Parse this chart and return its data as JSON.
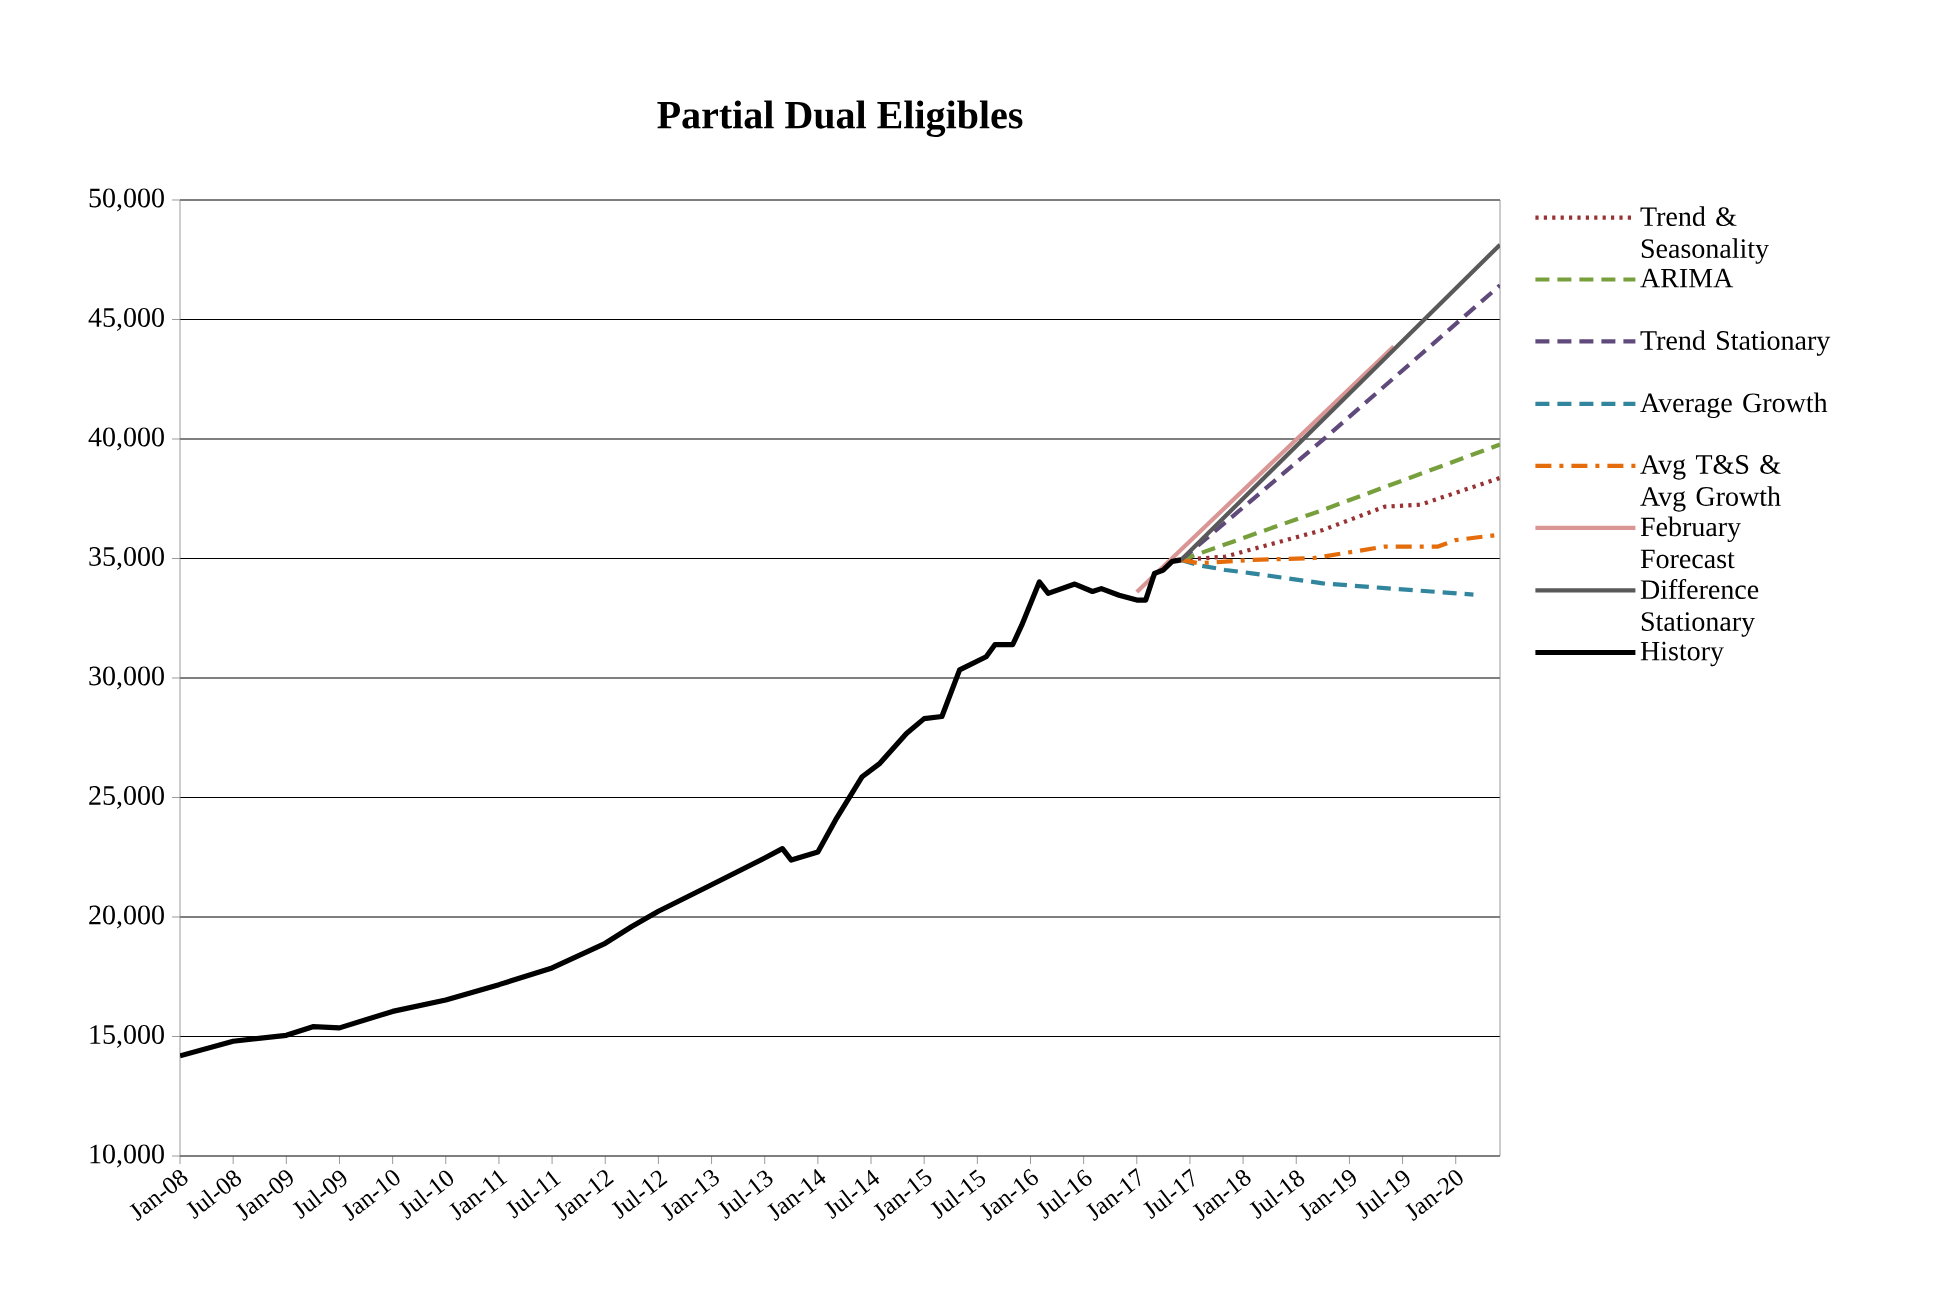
{
  "chart_data": {
    "type": "line",
    "title": "Partial Dual Eligibles",
    "xlim": [
      "2008-01",
      "2020-06"
    ],
    "xticks": [
      {
        "value": "2008-01",
        "label": "Jan-08"
      },
      {
        "value": "2008-07",
        "label": "Jul-08"
      },
      {
        "value": "2009-01",
        "label": "Jan-09"
      },
      {
        "value": "2009-07",
        "label": "Jul-09"
      },
      {
        "value": "2010-01",
        "label": "Jan-10"
      },
      {
        "value": "2010-07",
        "label": "Jul-10"
      },
      {
        "value": "2011-01",
        "label": "Jan-11"
      },
      {
        "value": "2011-07",
        "label": "Jul-11"
      },
      {
        "value": "2012-01",
        "label": "Jan-12"
      },
      {
        "value": "2012-07",
        "label": "Jul-12"
      },
      {
        "value": "2013-01",
        "label": "Jan-13"
      },
      {
        "value": "2013-07",
        "label": "Jul-13"
      },
      {
        "value": "2014-01",
        "label": "Jan-14"
      },
      {
        "value": "2014-07",
        "label": "Jul-14"
      },
      {
        "value": "2015-01",
        "label": "Jan-15"
      },
      {
        "value": "2015-07",
        "label": "Jul-15"
      },
      {
        "value": "2016-01",
        "label": "Jan-16"
      },
      {
        "value": "2016-07",
        "label": "Jul-16"
      },
      {
        "value": "2017-01",
        "label": "Jan-17"
      },
      {
        "value": "2017-07",
        "label": "Jul-17"
      },
      {
        "value": "2018-01",
        "label": "Jan-18"
      },
      {
        "value": "2018-07",
        "label": "Jul-18"
      },
      {
        "value": "2019-01",
        "label": "Jan-19"
      },
      {
        "value": "2019-07",
        "label": "Jul-19"
      },
      {
        "value": "2020-01",
        "label": "Jan-20"
      }
    ],
    "ylim": [
      10000,
      50000
    ],
    "yticks": [
      {
        "value": 10000,
        "label": "10,000"
      },
      {
        "value": 15000,
        "label": "15,000"
      },
      {
        "value": 20000,
        "label": "20,000"
      },
      {
        "value": 25000,
        "label": "25,000"
      },
      {
        "value": 30000,
        "label": "30,000"
      },
      {
        "value": 35000,
        "label": "35,000"
      },
      {
        "value": 40000,
        "label": "40,000"
      },
      {
        "value": 45000,
        "label": "45,000"
      },
      {
        "value": 50000,
        "label": "50,000"
      }
    ],
    "grid": "y",
    "legend": "right",
    "series": [
      {
        "name": "Trend & Seasonality",
        "color": "#993333",
        "line_style": "dotted",
        "x": [
          "2017-06",
          "2017-11",
          "2018-10",
          "2019-05",
          "2019-09",
          "2019-11",
          "2020-06"
        ],
        "values": [
          34940,
          35080,
          36190,
          37170,
          37250,
          37500,
          38370
        ]
      },
      {
        "name": "ARIMA",
        "color": "#77a03c",
        "line_style": "dashed",
        "x": [
          "2017-06",
          "2018-10",
          "2020-06"
        ],
        "values": [
          34940,
          37030,
          39770
        ]
      },
      {
        "name": "Trend Stationary",
        "color": "#604a7b",
        "line_style": "dashed",
        "x": [
          "2017-06",
          "2018-10",
          "2020-06"
        ],
        "values": [
          34940,
          39960,
          46430
        ]
      },
      {
        "name": "Average Growth",
        "color": "#31859c",
        "line_style": "dashed",
        "x": [
          "2017-06",
          "2017-08",
          "2017-11",
          "2018-02",
          "2018-10",
          "2019-05",
          "2020-03"
        ],
        "values": [
          34940,
          34720,
          34520,
          34380,
          33960,
          33760,
          33490
        ]
      },
      {
        "name": "Avg T&S & Avg Growth",
        "color": "#e46c0a",
        "line_style": "dashdot",
        "x": [
          "2017-06",
          "2017-08",
          "2018-02",
          "2018-09",
          "2019-05",
          "2019-11",
          "2020-01",
          "2020-06"
        ],
        "values": [
          34940,
          34800,
          34940,
          35020,
          35500,
          35500,
          35770,
          36000
        ]
      },
      {
        "name": "February Forecast",
        "color": "#d99694",
        "line_style": "solid",
        "x": [
          "2017-01",
          "2019-06"
        ],
        "values": [
          33600,
          43870
        ]
      },
      {
        "name": "Difference Stationary",
        "color": "#595959",
        "line_style": "solid",
        "x": [
          "2017-06",
          "2020-06"
        ],
        "values": [
          34940,
          48130
        ]
      },
      {
        "name": "History",
        "color": "#000000",
        "line_style": "solid",
        "x": [
          "2008-01",
          "2008-07",
          "2009-01",
          "2009-04",
          "2009-07",
          "2010-01",
          "2010-07",
          "2011-01",
          "2011-07",
          "2012-01",
          "2012-04",
          "2012-07",
          "2013-01",
          "2013-07",
          "2013-09",
          "2013-10",
          "2014-01",
          "2014-03",
          "2014-06",
          "2014-08",
          "2014-11",
          "2015-01",
          "2015-03",
          "2015-05",
          "2015-08",
          "2015-09",
          "2015-11",
          "2015-12",
          "2016-02",
          "2016-03",
          "2016-06",
          "2016-08",
          "2016-09",
          "2016-11",
          "2017-01",
          "2017-02",
          "2017-03",
          "2017-04",
          "2017-05",
          "2017-06"
        ],
        "values": [
          14190,
          14800,
          15050,
          15410,
          15360,
          16050,
          16530,
          17170,
          17870,
          18900,
          19600,
          20240,
          21350,
          22470,
          22860,
          22380,
          22720,
          24060,
          25870,
          26430,
          27680,
          28300,
          28390,
          30340,
          30890,
          31400,
          31400,
          32200,
          34020,
          33540,
          33930,
          33620,
          33740,
          33460,
          33260,
          33260,
          34380,
          34520,
          34880,
          34940
        ]
      }
    ]
  }
}
